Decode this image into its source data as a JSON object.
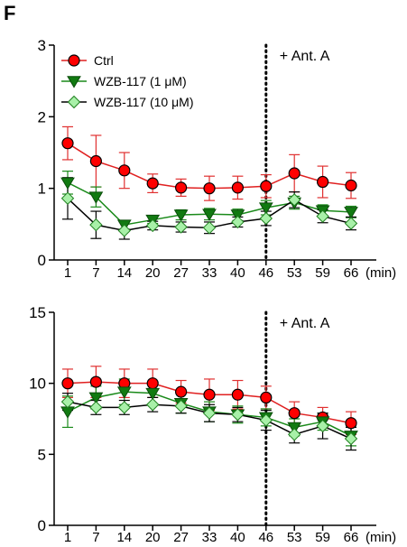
{
  "panel_label": "F",
  "chart_data": [
    {
      "type": "line",
      "title": "",
      "xlabel": "",
      "ylabel": "",
      "x_unit": "(min)",
      "categories": [
        "1",
        "7",
        "14",
        "20",
        "27",
        "33",
        "40",
        "46",
        "53",
        "59",
        "66"
      ],
      "ylim": [
        0,
        3
      ],
      "yticks": [
        0,
        1,
        2,
        3
      ],
      "grid": false,
      "legend": "top-left",
      "annotation": {
        "text": "+ Ant. A",
        "at_category": "46",
        "line_style": "dotted"
      },
      "series": [
        {
          "name": "Ctrl",
          "marker": "circle",
          "color": "#ff0000",
          "edge": "#000000",
          "line": "#e02020",
          "errcolor": "#e03030",
          "values": [
            1.63,
            1.38,
            1.25,
            1.07,
            1.01,
            1.0,
            1.01,
            1.03,
            1.21,
            1.09,
            1.04
          ],
          "errors": [
            0.23,
            0.36,
            0.25,
            0.13,
            0.12,
            0.17,
            0.16,
            0.16,
            0.26,
            0.22,
            0.18
          ]
        },
        {
          "name": "WZB-117",
          "name_suffix": "(1 μM)",
          "marker": "triangle-down",
          "color": "#117a11",
          "edge": "#0b4d0b",
          "line": "#1a8a1a",
          "errcolor": "#1a8a1a",
          "values": [
            1.08,
            0.88,
            0.49,
            0.56,
            0.63,
            0.64,
            0.63,
            0.73,
            0.8,
            0.69,
            0.67
          ],
          "errors": [
            0.16,
            0.14,
            0.06,
            0.05,
            0.07,
            0.08,
            0.08,
            0.1,
            0.09,
            0.08,
            0.08
          ]
        },
        {
          "name": "WZB-117",
          "name_suffix": "(10 μM)",
          "marker": "diamond",
          "color": "#a8f0a8",
          "edge": "#208020",
          "line": "#000000",
          "errcolor": "#000000",
          "values": [
            0.86,
            0.49,
            0.41,
            0.48,
            0.46,
            0.45,
            0.53,
            0.58,
            0.84,
            0.61,
            0.51
          ],
          "errors": [
            0.29,
            0.19,
            0.12,
            0.06,
            0.07,
            0.08,
            0.07,
            0.1,
            0.11,
            0.09,
            0.09
          ]
        }
      ]
    },
    {
      "type": "line",
      "title": "",
      "xlabel": "",
      "ylabel": "",
      "x_unit": "(min)",
      "categories": [
        "1",
        "7",
        "14",
        "20",
        "27",
        "33",
        "40",
        "46",
        "53",
        "59",
        "66"
      ],
      "ylim": [
        0,
        15
      ],
      "yticks": [
        0,
        5,
        10,
        15
      ],
      "grid": false,
      "legend": "none",
      "annotation": {
        "text": "+ Ant. A",
        "at_category": "46",
        "line_style": "dotted"
      },
      "series": [
        {
          "name": "Ctrl",
          "marker": "circle",
          "color": "#ff0000",
          "edge": "#000000",
          "line": "#e02020",
          "errcolor": "#e03030",
          "values": [
            10.0,
            10.1,
            10.0,
            10.0,
            9.4,
            9.2,
            9.2,
            9.0,
            7.9,
            7.6,
            7.2
          ],
          "errors": [
            1.0,
            1.1,
            1.0,
            1.0,
            0.8,
            1.1,
            1.0,
            0.8,
            0.8,
            0.7,
            0.8
          ]
        },
        {
          "name": "WZB-117",
          "name_suffix": "(1 μM)",
          "marker": "triangle-down",
          "color": "#117a11",
          "edge": "#0b4d0b",
          "line": "#1a8a1a",
          "errcolor": "#1a8a1a",
          "values": [
            8.0,
            9.0,
            9.4,
            9.3,
            8.6,
            8.0,
            7.8,
            7.6,
            6.9,
            7.3,
            6.3
          ],
          "errors": [
            1.1,
            0.8,
            0.9,
            0.8,
            0.7,
            0.7,
            0.6,
            0.6,
            0.6,
            0.6,
            0.7
          ]
        },
        {
          "name": "WZB-117",
          "name_suffix": "(10 μM)",
          "marker": "diamond",
          "color": "#a8f0a8",
          "edge": "#208020",
          "line": "#000000",
          "errcolor": "#000000",
          "values": [
            8.7,
            8.3,
            8.3,
            8.5,
            8.4,
            7.9,
            7.8,
            7.4,
            6.4,
            7.0,
            6.1
          ],
          "errors": [
            0.6,
            0.5,
            0.5,
            0.5,
            0.5,
            0.6,
            0.5,
            0.7,
            0.6,
            0.9,
            0.8
          ]
        }
      ]
    }
  ]
}
